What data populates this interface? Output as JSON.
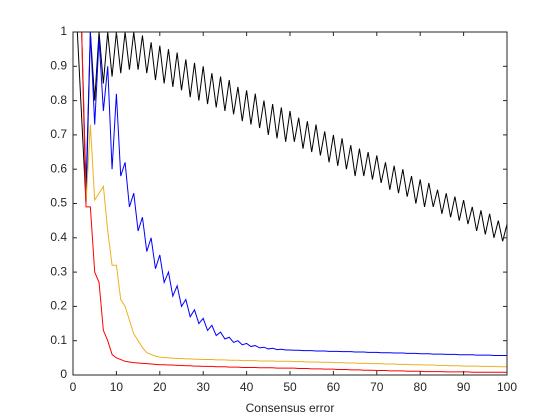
{
  "chart_data": {
    "type": "line",
    "xlabel": "Consensus error",
    "x": [
      1,
      2,
      3,
      4,
      5,
      6,
      7,
      8,
      9,
      10,
      11,
      12,
      13,
      14,
      15,
      16,
      17,
      18,
      19,
      20,
      21,
      22,
      23,
      24,
      25,
      26,
      27,
      28,
      29,
      30,
      31,
      32,
      33,
      34,
      35,
      36,
      37,
      38,
      39,
      40,
      41,
      42,
      43,
      44,
      45,
      46,
      47,
      48,
      49,
      50,
      51,
      52,
      53,
      54,
      55,
      56,
      57,
      58,
      59,
      60,
      61,
      62,
      63,
      64,
      65,
      66,
      67,
      68,
      69,
      70,
      71,
      72,
      73,
      74,
      75,
      76,
      77,
      78,
      79,
      80,
      81,
      82,
      83,
      84,
      85,
      86,
      87,
      88,
      89,
      90,
      91,
      92,
      93,
      94,
      95,
      96,
      97,
      98,
      99,
      100
    ],
    "series": [
      {
        "color": "#000000",
        "values": [
          1,
          0.75,
          0.5,
          1,
          0.8,
          1,
          0.85,
          1,
          0.87,
          1,
          0.88,
          1,
          0.89,
          1,
          0.89,
          0.99,
          0.88,
          0.97,
          0.86,
          0.96,
          0.85,
          0.95,
          0.84,
          0.94,
          0.83,
          0.92,
          0.81,
          0.91,
          0.8,
          0.9,
          0.79,
          0.88,
          0.78,
          0.87,
          0.77,
          0.86,
          0.76,
          0.84,
          0.74,
          0.83,
          0.73,
          0.82,
          0.72,
          0.8,
          0.7,
          0.79,
          0.69,
          0.78,
          0.68,
          0.77,
          0.68,
          0.75,
          0.66,
          0.74,
          0.65,
          0.73,
          0.64,
          0.71,
          0.62,
          0.7,
          0.61,
          0.69,
          0.6,
          0.67,
          0.58,
          0.66,
          0.58,
          0.65,
          0.57,
          0.64,
          0.56,
          0.62,
          0.54,
          0.61,
          0.53,
          0.6,
          0.52,
          0.58,
          0.5,
          0.57,
          0.49,
          0.56,
          0.49,
          0.54,
          0.47,
          0.53,
          0.46,
          0.52,
          0.45,
          0.51,
          0.44,
          0.49,
          0.42,
          0.48,
          0.41,
          0.47,
          0.4,
          0.45,
          0.39,
          0.44
        ]
      },
      {
        "color": "#0000ff",
        "values": [
          1,
          1,
          0.55,
          1,
          0.73,
          0.98,
          0.77,
          0.9,
          0.6,
          0.82,
          0.58,
          0.62,
          0.49,
          0.53,
          0.42,
          0.46,
          0.36,
          0.4,
          0.31,
          0.35,
          0.27,
          0.3,
          0.23,
          0.26,
          0.2,
          0.22,
          0.17,
          0.19,
          0.15,
          0.165,
          0.13,
          0.145,
          0.115,
          0.125,
          0.105,
          0.11,
          0.095,
          0.1,
          0.088,
          0.092,
          0.083,
          0.086,
          0.079,
          0.081,
          0.076,
          0.078,
          0.074,
          0.075,
          0.073,
          0.073,
          0.072,
          0.072,
          0.071,
          0.071,
          0.071,
          0.07,
          0.07,
          0.07,
          0.069,
          0.069,
          0.069,
          0.068,
          0.068,
          0.068,
          0.067,
          0.067,
          0.067,
          0.066,
          0.066,
          0.066,
          0.065,
          0.065,
          0.065,
          0.064,
          0.064,
          0.064,
          0.063,
          0.063,
          0.063,
          0.062,
          0.062,
          0.062,
          0.061,
          0.061,
          0.061,
          0.06,
          0.06,
          0.06,
          0.059,
          0.059,
          0.059,
          0.059,
          0.058,
          0.058,
          0.058,
          0.058,
          0.057,
          0.057,
          0.057,
          0.057
        ]
      },
      {
        "color": "#edb120",
        "values": [
          1,
          1,
          0.5,
          0.73,
          0.51,
          0.53,
          0.55,
          0.42,
          0.32,
          0.32,
          0.22,
          0.2,
          0.16,
          0.12,
          0.1,
          0.08,
          0.065,
          0.06,
          0.055,
          0.052,
          0.051,
          0.05,
          0.049,
          0.048,
          0.048,
          0.047,
          0.047,
          0.046,
          0.046,
          0.045,
          0.045,
          0.045,
          0.044,
          0.044,
          0.044,
          0.043,
          0.043,
          0.043,
          0.042,
          0.042,
          0.042,
          0.042,
          0.041,
          0.041,
          0.041,
          0.041,
          0.04,
          0.04,
          0.04,
          0.04,
          0.039,
          0.039,
          0.039,
          0.038,
          0.038,
          0.038,
          0.037,
          0.037,
          0.037,
          0.036,
          0.036,
          0.036,
          0.035,
          0.035,
          0.035,
          0.034,
          0.034,
          0.034,
          0.033,
          0.033,
          0.033,
          0.032,
          0.032,
          0.032,
          0.031,
          0.031,
          0.031,
          0.03,
          0.03,
          0.03,
          0.029,
          0.029,
          0.029,
          0.028,
          0.028,
          0.028,
          0.027,
          0.027,
          0.027,
          0.026,
          0.026,
          0.026,
          0.026,
          0.025,
          0.025,
          0.025,
          0.025,
          0.024,
          0.024,
          0.024
        ]
      },
      {
        "color": "#ff0000",
        "values": [
          1,
          1,
          0.49,
          0.49,
          0.3,
          0.27,
          0.13,
          0.1,
          0.06,
          0.05,
          0.045,
          0.04,
          0.038,
          0.036,
          0.035,
          0.034,
          0.033,
          0.032,
          0.031,
          0.03,
          0.03,
          0.029,
          0.029,
          0.028,
          0.028,
          0.027,
          0.027,
          0.026,
          0.026,
          0.025,
          0.025,
          0.025,
          0.024,
          0.024,
          0.024,
          0.023,
          0.023,
          0.023,
          0.022,
          0.022,
          0.022,
          0.022,
          0.021,
          0.021,
          0.021,
          0.021,
          0.02,
          0.02,
          0.02,
          0.02,
          0.02,
          0.019,
          0.019,
          0.019,
          0.018,
          0.018,
          0.018,
          0.017,
          0.017,
          0.017,
          0.016,
          0.016,
          0.016,
          0.015,
          0.015,
          0.015,
          0.014,
          0.014,
          0.014,
          0.013,
          0.013,
          0.013,
          0.012,
          0.012,
          0.012,
          0.012,
          0.011,
          0.011,
          0.011,
          0.011,
          0.01,
          0.01,
          0.01,
          0.01,
          0.01,
          0.009,
          0.009,
          0.009,
          0.009,
          0.009,
          0.009,
          0.008,
          0.008,
          0.008,
          0.008,
          0.008,
          0.008,
          0.008,
          0.008,
          0.008
        ]
      }
    ],
    "xlim": [
      0,
      100
    ],
    "xticks": [
      0,
      10,
      20,
      30,
      40,
      50,
      60,
      70,
      80,
      90,
      100
    ],
    "ylim": [
      0,
      1
    ],
    "yticks": [
      0,
      0.1,
      0.2,
      0.3,
      0.4,
      0.5,
      0.6,
      0.7,
      0.8,
      0.9,
      1
    ]
  }
}
